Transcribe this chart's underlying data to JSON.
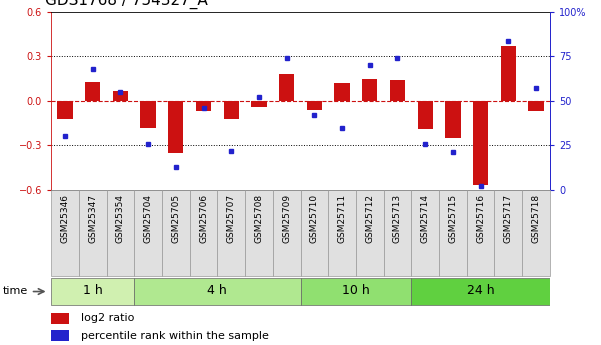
{
  "title": "GDS1768 / 754327_A",
  "samples": [
    "GSM25346",
    "GSM25347",
    "GSM25354",
    "GSM25704",
    "GSM25705",
    "GSM25706",
    "GSM25707",
    "GSM25708",
    "GSM25709",
    "GSM25710",
    "GSM25711",
    "GSM25712",
    "GSM25713",
    "GSM25714",
    "GSM25715",
    "GSM25716",
    "GSM25717",
    "GSM25718"
  ],
  "log2_ratio": [
    -0.12,
    0.13,
    0.07,
    -0.18,
    -0.35,
    -0.07,
    -0.12,
    -0.04,
    0.18,
    -0.06,
    0.12,
    0.15,
    0.14,
    -0.19,
    -0.25,
    -0.57,
    0.37,
    -0.07
  ],
  "pct_rank": [
    30,
    68,
    55,
    26,
    13,
    46,
    22,
    52,
    74,
    42,
    35,
    70,
    74,
    26,
    21,
    2,
    84,
    57
  ],
  "groups": [
    {
      "label": "1 h",
      "start": 0,
      "end": 3,
      "color": "#d0f0b0"
    },
    {
      "label": "4 h",
      "start": 3,
      "end": 9,
      "color": "#b0e890"
    },
    {
      "label": "10 h",
      "start": 9,
      "end": 13,
      "color": "#90e070"
    },
    {
      "label": "24 h",
      "start": 13,
      "end": 18,
      "color": "#60d040"
    }
  ],
  "ylim_left": [
    -0.6,
    0.6
  ],
  "ylim_right": [
    0,
    100
  ],
  "yticks_left": [
    -0.6,
    -0.3,
    0.0,
    0.3,
    0.6
  ],
  "yticks_right": [
    0,
    25,
    50,
    75,
    100
  ],
  "bar_color": "#cc1111",
  "dot_color": "#2222cc",
  "bar_width": 0.55,
  "title_fontsize": 11,
  "tick_fontsize": 7,
  "sample_fontsize": 6.5,
  "legend_fontsize": 8,
  "group_label_fontsize": 9
}
